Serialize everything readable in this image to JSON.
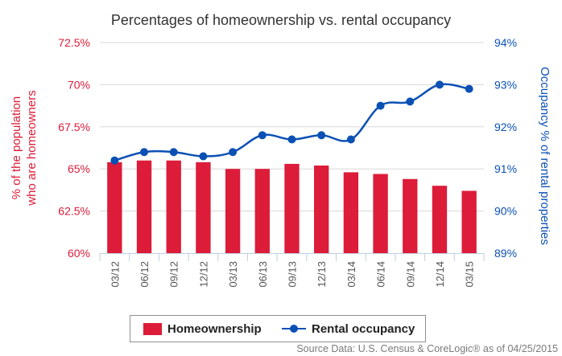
{
  "chart_data": {
    "type": "bar+line",
    "title": "Percentages of homeownership vs. rental occupancy",
    "categories": [
      "03/12",
      "06/12",
      "09/12",
      "12/12",
      "03/13",
      "06/13",
      "09/13",
      "12/13",
      "03/14",
      "06/14",
      "09/14",
      "12/14",
      "03/15"
    ],
    "series": [
      {
        "name": "Homeownership",
        "type": "bar",
        "axis": "left",
        "color": "#dc1c39",
        "values": [
          65.4,
          65.5,
          65.5,
          65.4,
          65.0,
          65.0,
          65.3,
          65.2,
          64.8,
          64.7,
          64.4,
          64.0,
          63.7
        ]
      },
      {
        "name": "Rental occupancy",
        "type": "line",
        "axis": "right",
        "color": "#0b50b4",
        "values": [
          91.2,
          91.4,
          91.4,
          91.3,
          91.4,
          91.8,
          91.7,
          91.8,
          91.7,
          92.5,
          92.6,
          93.0,
          92.9
        ]
      }
    ],
    "y_left": {
      "label_line1": "% of the population",
      "label_line2": "who are homeowners",
      "min": 60,
      "max": 72.5,
      "ticks": [
        60,
        62.5,
        65,
        67.5,
        70,
        72.5
      ],
      "tick_labels": [
        "60%",
        "62.5%",
        "65%",
        "67.5%",
        "70%",
        "72.5%"
      ],
      "color": "#dc1c39"
    },
    "y_right": {
      "label": "Occupancy % of rental properties",
      "min": 89,
      "max": 94,
      "ticks": [
        89,
        90,
        91,
        92,
        93,
        94
      ],
      "tick_labels": [
        "89%",
        "90%",
        "91%",
        "92%",
        "93%",
        "94%"
      ],
      "color": "#0b50b4"
    },
    "grid": "horizontal",
    "legend_position": "bottom"
  },
  "legend": {
    "homeownership": "Homeownership",
    "rental": "Rental occupancy"
  },
  "source": "Source Data: U.S. Census & CoreLogic® as of 04/25/2015"
}
